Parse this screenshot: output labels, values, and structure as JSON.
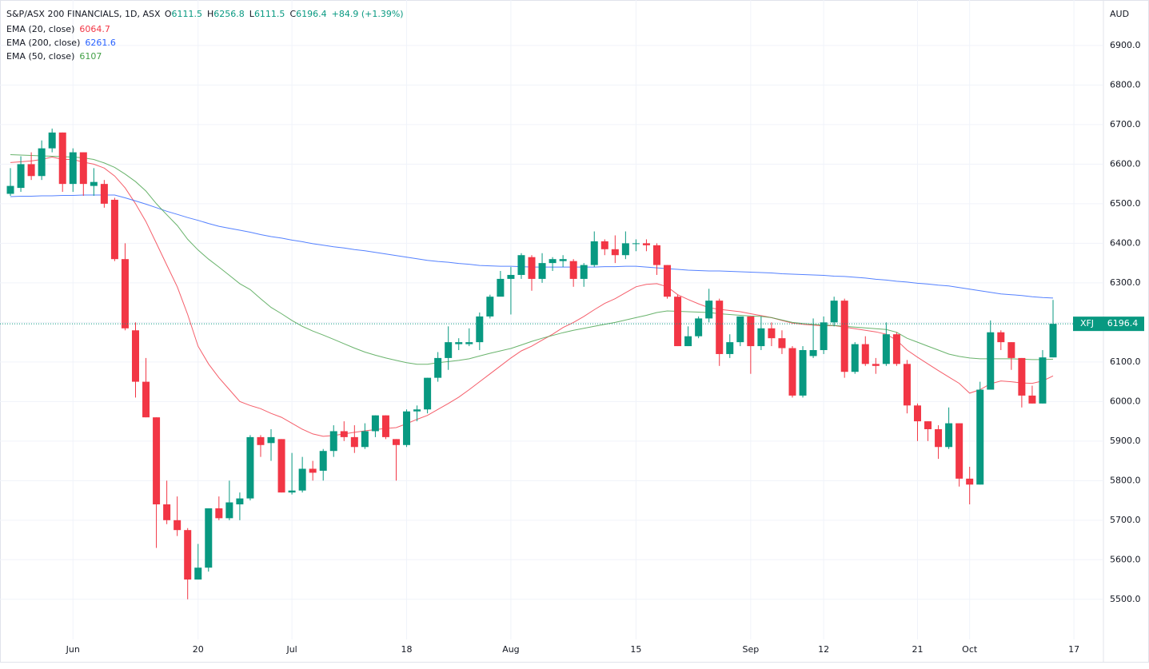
{
  "chart_data": {
    "type": "candlestick",
    "title": "S&P/ASX 200 FINANCIALS, 1D, ASX",
    "ohlc_labels": [
      "O",
      "H",
      "L",
      "C"
    ],
    "change": "+84.9 (+1.39%)",
    "currency": "AUD",
    "symbol": "XFJ",
    "categories": [
      null,
      null,
      null,
      null,
      null,
      null,
      "Jun",
      null,
      null,
      null,
      null,
      null,
      null,
      null,
      null,
      null,
      null,
      null,
      "20",
      null,
      null,
      null,
      null,
      null,
      null,
      null,
      null,
      "Jul",
      null,
      null,
      null,
      null,
      null,
      null,
      null,
      null,
      null,
      null,
      "18",
      null,
      null,
      null,
      null,
      null,
      null,
      null,
      null,
      null,
      "Aug",
      null,
      null,
      null,
      null,
      null,
      null,
      null,
      null,
      null,
      null,
      null,
      "15",
      null,
      null,
      null,
      null,
      null,
      null,
      null,
      null,
      null,
      null,
      "Sep",
      null,
      null,
      null,
      null,
      null,
      null,
      "12",
      null,
      null,
      null,
      null,
      null,
      null,
      null,
      null,
      "21",
      null,
      null,
      null,
      null,
      "Oct",
      null,
      null,
      null,
      null,
      null,
      null,
      null,
      null,
      null,
      "17"
    ],
    "open": [
      6525,
      6540,
      6600,
      6570,
      6640,
      6680,
      6550,
      6630,
      6545,
      6550,
      6510,
      6360,
      6180,
      6050,
      5960,
      5740,
      5700,
      5675,
      5550,
      5580,
      5730,
      5705,
      5740,
      5755,
      5910,
      5895,
      5905,
      5770,
      5775,
      5830,
      5825,
      5875,
      5925,
      5910,
      5885,
      5925,
      5965,
      5905,
      5890,
      5975,
      5980,
      6060,
      6110,
      6145,
      6145,
      6150,
      6215,
      6265,
      6310,
      6320,
      6365,
      6310,
      6350,
      6355,
      6355,
      6310,
      6345,
      6405,
      6385,
      6370,
      6398,
      6400,
      6395,
      6345,
      6265,
      6140,
      6165,
      6210,
      6255,
      6120,
      6150,
      6215,
      6140,
      6185,
      6160,
      6135,
      6015,
      6115,
      6130,
      6200,
      6255,
      6075,
      6145,
      6095,
      6095,
      6170,
      6095,
      5990,
      5950,
      5930,
      5885,
      5945,
      5805,
      5790,
      6030,
      6175,
      6150,
      6110,
      6015,
      5995,
      6111.5,
      null,
      null
    ],
    "high": [
      6590,
      6620,
      6630,
      6660,
      6690,
      6680,
      6640,
      6630,
      6590,
      6560,
      6515,
      6400,
      6200,
      6110,
      5960,
      5800,
      5760,
      5680,
      5640,
      5730,
      5760,
      5800,
      5770,
      5915,
      5915,
      5930,
      5905,
      5870,
      5860,
      5850,
      5880,
      5940,
      5950,
      5940,
      5945,
      5965,
      5965,
      5905,
      5980,
      5990,
      6060,
      6125,
      6190,
      6160,
      6185,
      6225,
      6270,
      6330,
      6340,
      6375,
      6370,
      6375,
      6365,
      6370,
      6360,
      6350,
      6430,
      6410,
      6420,
      6430,
      6410,
      6410,
      6400,
      6345,
      6270,
      6190,
      6215,
      6285,
      6260,
      6170,
      6215,
      6215,
      6215,
      6200,
      6180,
      6140,
      6140,
      6210,
      6215,
      6265,
      6260,
      6150,
      6165,
      6110,
      6200,
      6175,
      6105,
      5995,
      5950,
      5940,
      5985,
      5945,
      5835,
      6050,
      6205,
      6180,
      6150,
      6110,
      6040,
      6130,
      6256.8,
      null,
      null
    ],
    "low": [
      6520,
      6530,
      6560,
      6560,
      6630,
      6530,
      6530,
      6520,
      6520,
      6490,
      6355,
      6180,
      6010,
      5960,
      5630,
      5690,
      5660,
      5500,
      5550,
      5570,
      5700,
      5700,
      5700,
      5750,
      5860,
      5850,
      5770,
      5765,
      5770,
      5800,
      5800,
      5860,
      5900,
      5870,
      5880,
      5910,
      5905,
      5800,
      5885,
      5950,
      5970,
      6050,
      6080,
      6130,
      6140,
      6130,
      6210,
      6270,
      6220,
      6310,
      6280,
      6300,
      6330,
      6340,
      6290,
      6290,
      6340,
      6370,
      6350,
      6360,
      6380,
      6380,
      6320,
      6260,
      6140,
      6140,
      6160,
      6200,
      6090,
      6110,
      6140,
      6070,
      6130,
      6140,
      6120,
      6010,
      6010,
      6110,
      6120,
      6190,
      6060,
      6070,
      6090,
      6070,
      6090,
      6090,
      5970,
      5900,
      5900,
      5855,
      5880,
      5785,
      5740,
      5790,
      6030,
      6130,
      6080,
      5985,
      5995,
      5995,
      6111.5,
      null,
      null
    ],
    "close": [
      6545,
      6600,
      6570,
      6640,
      6680,
      6550,
      6630,
      6550,
      6555,
      6500,
      6360,
      6185,
      6050,
      5960,
      5740,
      5700,
      5675,
      5550,
      5580,
      5730,
      5705,
      5745,
      5755,
      5910,
      5890,
      5910,
      5770,
      5775,
      5830,
      5820,
      5875,
      5925,
      5910,
      5885,
      5925,
      5965,
      5910,
      5890,
      5975,
      5980,
      6060,
      6110,
      6150,
      6150,
      6150,
      6215,
      6265,
      6310,
      6320,
      6370,
      6310,
      6350,
      6360,
      6360,
      6310,
      6345,
      6405,
      6385,
      6370,
      6400,
      6400,
      6395,
      6345,
      6265,
      6140,
      6165,
      6210,
      6255,
      6120,
      6150,
      6215,
      6140,
      6185,
      6160,
      6135,
      6015,
      6130,
      6130,
      6200,
      6255,
      6075,
      6145,
      6095,
      6090,
      6170,
      6095,
      5990,
      5950,
      5930,
      5885,
      5945,
      5805,
      5790,
      6030,
      6175,
      6150,
      6110,
      6015,
      5995,
      6111.5,
      6196.4,
      null,
      null
    ],
    "up_color": "#089981",
    "down_color": "#f23645",
    "series": [
      {
        "name": "EMA (20, close)",
        "color": "#f23645",
        "values": [
          6604,
          6606,
          6608,
          6612,
          6618,
          6612,
          6612,
          6605,
          6600,
          6590,
          6570,
          6540,
          6500,
          6455,
          6400,
          6345,
          6290,
          6220,
          6140,
          6095,
          6060,
          6030,
          6000,
          5990,
          5982,
          5970,
          5960,
          5945,
          5930,
          5918,
          5912,
          5914,
          5918,
          5922,
          5926,
          5929,
          5932,
          5934,
          5944,
          5955,
          5965,
          5980,
          5995,
          6011,
          6030,
          6050,
          6070,
          6090,
          6110,
          6128,
          6140,
          6155,
          6170,
          6187,
          6200,
          6215,
          6232,
          6248,
          6260,
          6275,
          6290,
          6296,
          6298,
          6290,
          6270,
          6258,
          6247,
          6237,
          6233,
          6230,
          6227,
          6222,
          6217,
          6212,
          6205,
          6198,
          6195,
          6193,
          6191,
          6192,
          6188,
          6184,
          6180,
          6176,
          6170,
          6155,
          6130,
          6112,
          6095,
          6078,
          6062,
          6046,
          6021,
          6030,
          6045,
          6052,
          6050,
          6047,
          6046,
          6052,
          6064.7,
          null,
          null
        ]
      },
      {
        "name": "EMA (200, close)",
        "color": "#2962ff",
        "values": [
          6518,
          6519,
          6519,
          6520,
          6520,
          6521,
          6521,
          6522,
          6522,
          6522,
          6522,
          6515,
          6507,
          6499,
          6490,
          6481,
          6473,
          6465,
          6458,
          6450,
          6443,
          6438,
          6433,
          6428,
          6422,
          6417,
          6413,
          6408,
          6404,
          6399,
          6395,
          6391,
          6388,
          6384,
          6381,
          6377,
          6373,
          6369,
          6365,
          6361,
          6357,
          6354,
          6352,
          6349,
          6347,
          6344,
          6343,
          6342,
          6342,
          6341,
          6340,
          6340,
          6340,
          6340,
          6340,
          6340,
          6340,
          6341,
          6341,
          6342,
          6342,
          6340,
          6338,
          6336,
          6334,
          6332,
          6331,
          6330,
          6330,
          6329,
          6328,
          6327,
          6326,
          6325,
          6323,
          6322,
          6321,
          6320,
          6319,
          6317,
          6316,
          6314,
          6312,
          6309,
          6307,
          6304,
          6302,
          6299,
          6297,
          6294,
          6292,
          6288,
          6284,
          6280,
          6276,
          6272,
          6270,
          6268,
          6265,
          6263,
          6261.6,
          null,
          null
        ]
      },
      {
        "name": "EMA (50, close)",
        "color": "#43a047",
        "values": [
          6624,
          6623,
          6622,
          6621,
          6620,
          6619,
          6618,
          6616,
          6612,
          6603,
          6592,
          6575,
          6556,
          6532,
          6500,
          6472,
          6445,
          6410,
          6383,
          6360,
          6340,
          6319,
          6298,
          6283,
          6260,
          6238,
          6222,
          6205,
          6190,
          6178,
          6168,
          6157,
          6146,
          6135,
          6125,
          6117,
          6110,
          6104,
          6098,
          6094,
          6094,
          6098,
          6101,
          6104,
          6108,
          6115,
          6122,
          6128,
          6134,
          6143,
          6152,
          6160,
          6167,
          6174,
          6180,
          6185,
          6190,
          6195,
          6200,
          6206,
          6212,
          6218,
          6225,
          6229,
          6228,
          6227,
          6226,
          6225,
          6222,
          6220,
          6218,
          6216,
          6215,
          6212,
          6206,
          6200,
          6197,
          6195,
          6193,
          6192,
          6190,
          6188,
          6186,
          6184,
          6182,
          6175,
          6160,
          6150,
          6140,
          6130,
          6120,
          6114,
          6110,
          6108,
          6108,
          6108,
          6108,
          6107,
          6106,
          6106,
          6107.0,
          null,
          null
        ]
      }
    ],
    "ylim": [
      5342,
      7015
    ],
    "yticks": [
      {
        "value": 5500,
        "label": "5500.0"
      },
      {
        "value": 5600,
        "label": "5600.0"
      },
      {
        "value": 5700,
        "label": "5700.0"
      },
      {
        "value": 5800,
        "label": "5800.0"
      },
      {
        "value": 5900,
        "label": "5900.0"
      },
      {
        "value": 6000,
        "label": "6000.0"
      },
      {
        "value": 6100,
        "label": "6100.0"
      },
      {
        "value": 6200,
        "label": "6200.0"
      },
      {
        "value": 6300,
        "label": "6300.0"
      },
      {
        "value": 6400,
        "label": "6400.0"
      },
      {
        "value": 6500,
        "label": "6500.0"
      },
      {
        "value": 6600,
        "label": "6600.0"
      },
      {
        "value": 6700,
        "label": "6700.0"
      },
      {
        "value": 6800,
        "label": "6800.0"
      },
      {
        "value": 6900,
        "label": "6900.0"
      }
    ],
    "grid": true
  }
}
